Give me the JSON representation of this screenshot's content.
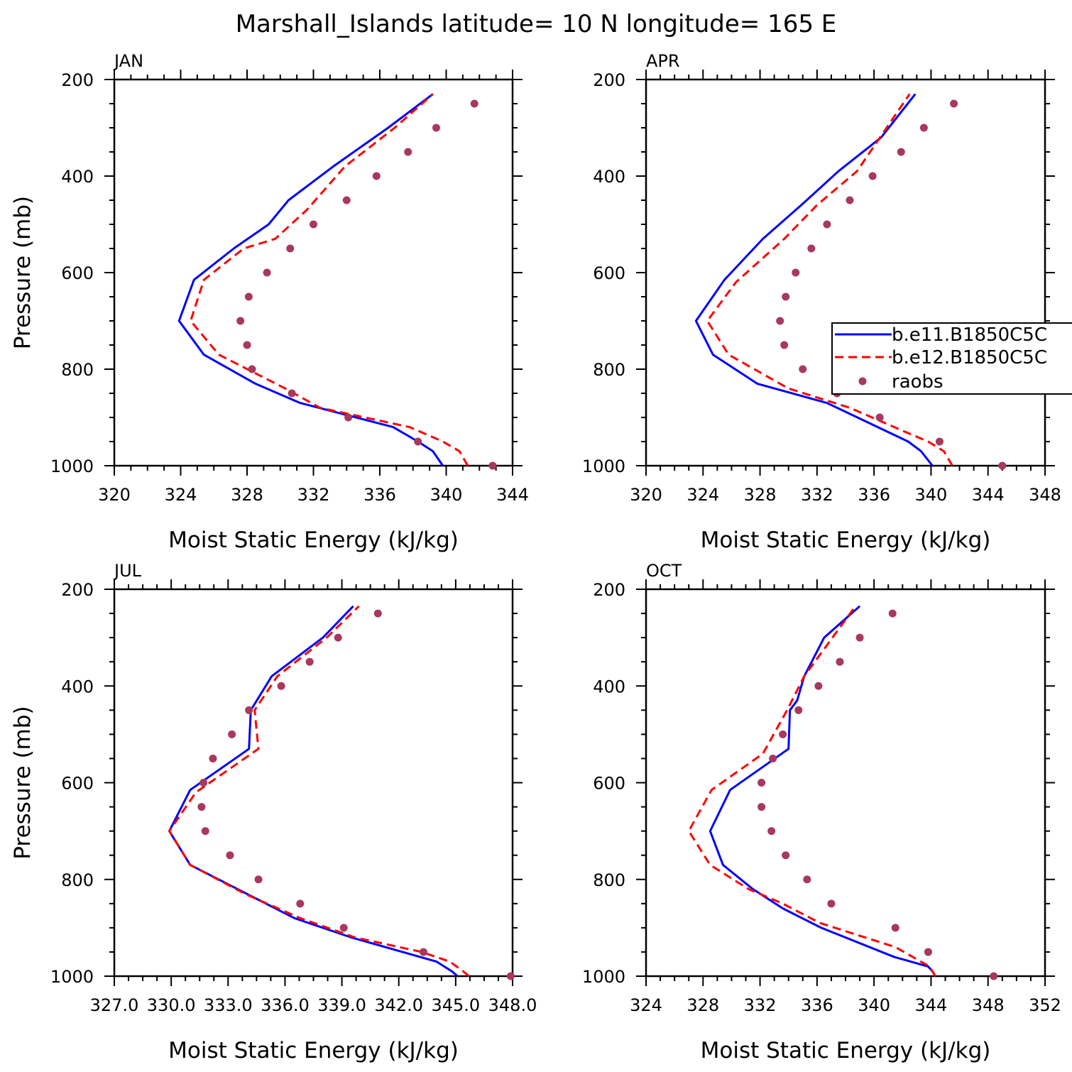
{
  "title": "Marshall_Islands  latitude= 10 N longitude= 165 E",
  "colors": {
    "series1": "#0000ff",
    "series2": "#ff0000",
    "raobs": "#a8385e"
  },
  "legend": {
    "placement": "right-middle",
    "entries": [
      "b.e11.B1850C5C",
      "b.e12.B1850C5C",
      "raobs"
    ]
  },
  "chart_data": [
    {
      "type": "line",
      "panel_label": "JAN",
      "xlabel": "Moist Static Energy (kJ/kg)",
      "ylabel": "Pressure (mb)",
      "xlim": [
        320,
        344
      ],
      "ylim": [
        1000,
        200
      ],
      "y_inverted": true,
      "xticks": [
        "320",
        "324",
        "328",
        "332",
        "336",
        "340",
        "344"
      ],
      "yticks": [
        "200",
        "400",
        "600",
        "800",
        "1000"
      ],
      "series": [
        {
          "name": "b.e11.B1850C5C",
          "style": "solid",
          "x": [
            339.8,
            339.2,
            338.3,
            336.8,
            331.2,
            328.5,
            325.4,
            323.9,
            324.8,
            327.2,
            329.3,
            330.5,
            333.2,
            336.5,
            339.2
          ],
          "y": [
            1000,
            970,
            950,
            920,
            870,
            830,
            770,
            700,
            615,
            550,
            500,
            450,
            380,
            300,
            230
          ]
        },
        {
          "name": "b.e12.B1850C5C",
          "style": "dashed",
          "x": [
            341.3,
            340.8,
            339.8,
            337.8,
            332.4,
            330.3,
            326.3,
            324.6,
            325.4,
            327.8,
            329.7,
            331.6,
            333.9,
            336.9,
            339.2
          ],
          "y": [
            1000,
            970,
            950,
            920,
            880,
            840,
            770,
            700,
            615,
            550,
            530,
            470,
            380,
            300,
            230
          ]
        },
        {
          "name": "raobs",
          "style": "markers",
          "x": [
            342.8,
            338.3,
            334.1,
            330.7,
            328.3,
            328.0,
            327.6,
            328.1,
            329.2,
            330.6,
            332.0,
            334.0,
            335.8,
            337.7,
            339.4,
            341.7
          ],
          "y": [
            1000,
            950,
            900,
            850,
            800,
            750,
            700,
            650,
            600,
            550,
            500,
            450,
            400,
            350,
            300,
            250
          ]
        }
      ]
    },
    {
      "type": "line",
      "panel_label": "APR",
      "xlabel": "Moist Static Energy (kJ/kg)",
      "ylabel": "",
      "xlim": [
        320,
        348
      ],
      "ylim": [
        1000,
        200
      ],
      "y_inverted": true,
      "xticks": [
        "320",
        "324",
        "328",
        "332",
        "336",
        "340",
        "344",
        "348"
      ],
      "yticks": [
        "200",
        "400",
        "600",
        "800",
        "1000"
      ],
      "series": [
        {
          "name": "b.e11.B1850C5C",
          "style": "solid",
          "x": [
            340.1,
            339.3,
            338.4,
            332.7,
            327.8,
            324.7,
            323.5,
            325.5,
            328.2,
            330.9,
            333.5,
            336.5,
            338.9
          ],
          "y": [
            1000,
            970,
            950,
            870,
            830,
            770,
            700,
            615,
            530,
            460,
            390,
            320,
            230
          ]
        },
        {
          "name": "b.e12.B1850C5C",
          "style": "dashed",
          "x": [
            341.5,
            340.9,
            339.8,
            338.2,
            334.3,
            330.0,
            325.8,
            324.3,
            326.3,
            329.7,
            332.0,
            334.8,
            338.5
          ],
          "y": [
            1000,
            970,
            950,
            930,
            880,
            840,
            770,
            700,
            620,
            530,
            460,
            390,
            230
          ]
        },
        {
          "name": "raobs",
          "style": "markers",
          "x": [
            345.0,
            340.6,
            336.4,
            333.4,
            331.0,
            329.7,
            329.4,
            329.8,
            330.5,
            331.6,
            332.7,
            334.3,
            335.9,
            337.9,
            339.5,
            341.6
          ],
          "y": [
            1000,
            950,
            900,
            850,
            800,
            750,
            700,
            650,
            600,
            550,
            500,
            450,
            400,
            350,
            300,
            250
          ]
        }
      ]
    },
    {
      "type": "line",
      "panel_label": "JUL",
      "xlabel": "Moist Static Energy (kJ/kg)",
      "ylabel": "Pressure (mb)",
      "xlim": [
        327.0,
        348.0
      ],
      "ylim": [
        1000,
        200
      ],
      "y_inverted": true,
      "xticks": [
        "327.0",
        "330.0",
        "333.0",
        "336.0",
        "339.0",
        "342.0",
        "345.0",
        "348.0"
      ],
      "yticks": [
        "200",
        "400",
        "600",
        "800",
        "1000"
      ],
      "series": [
        {
          "name": "b.e11.B1850C5C",
          "style": "solid",
          "x": [
            345.1,
            344.8,
            344.0,
            339.5,
            336.5,
            334.0,
            331.0,
            329.9,
            331.0,
            334.1,
            334.2,
            335.3,
            338.0,
            339.6
          ],
          "y": [
            1000,
            990,
            970,
            920,
            880,
            830,
            770,
            700,
            615,
            530,
            450,
            380,
            300,
            235
          ]
        },
        {
          "name": "b.e12.B1850C5C",
          "style": "dashed",
          "x": [
            345.7,
            345.4,
            344.7,
            343.2,
            339.7,
            336.8,
            333.9,
            331.0,
            329.9,
            331.3,
            334.6,
            334.4,
            335.6,
            338.2,
            339.9
          ],
          "y": [
            1000,
            990,
            970,
            950,
            920,
            880,
            830,
            770,
            700,
            620,
            530,
            450,
            380,
            300,
            235
          ]
        },
        {
          "name": "raobs",
          "style": "markers",
          "x": [
            347.9,
            343.3,
            339.1,
            336.8,
            334.6,
            333.1,
            331.8,
            331.6,
            331.7,
            332.2,
            333.2,
            334.1,
            335.8,
            337.3,
            338.8,
            340.9
          ],
          "y": [
            1000,
            950,
            900,
            850,
            800,
            750,
            700,
            650,
            600,
            550,
            500,
            450,
            400,
            350,
            300,
            250
          ]
        }
      ]
    },
    {
      "type": "line",
      "panel_label": "OCT",
      "xlabel": "Moist Static Energy (kJ/kg)",
      "ylabel": "",
      "xlim": [
        324,
        352
      ],
      "ylim": [
        1000,
        200
      ],
      "y_inverted": true,
      "xticks": [
        "324",
        "328",
        "332",
        "336",
        "340",
        "344",
        "348",
        "352"
      ],
      "yticks": [
        "200",
        "400",
        "600",
        "800",
        "1000"
      ],
      "series": [
        {
          "name": "b.e11.B1850C5C",
          "style": "solid",
          "x": [
            344.3,
            344.1,
            343.8,
            341.4,
            336.3,
            333.6,
            331.5,
            329.4,
            328.5,
            329.9,
            334.0,
            334.1,
            334.6,
            335.1,
            336.5,
            339.0
          ],
          "y": [
            1000,
            990,
            980,
            960,
            900,
            860,
            820,
            770,
            700,
            615,
            530,
            450,
            430,
            380,
            300,
            235
          ]
        },
        {
          "name": "b.e12.B1850C5C",
          "style": "dashed",
          "x": [
            344.3,
            343.9,
            341.5,
            336.2,
            333.6,
            331.2,
            328.5,
            327.0,
            328.6,
            332.2,
            333.9,
            335.1,
            338.7
          ],
          "y": [
            1000,
            980,
            940,
            890,
            850,
            820,
            770,
            700,
            615,
            540,
            450,
            380,
            235
          ]
        },
        {
          "name": "raobs",
          "style": "markers",
          "x": [
            348.4,
            343.8,
            341.5,
            337.0,
            335.3,
            333.8,
            332.8,
            332.1,
            332.1,
            332.9,
            333.6,
            334.7,
            336.1,
            337.6,
            339.0,
            341.3
          ],
          "y": [
            1000,
            950,
            900,
            850,
            800,
            750,
            700,
            650,
            600,
            550,
            500,
            450,
            400,
            350,
            300,
            250
          ]
        }
      ]
    }
  ]
}
